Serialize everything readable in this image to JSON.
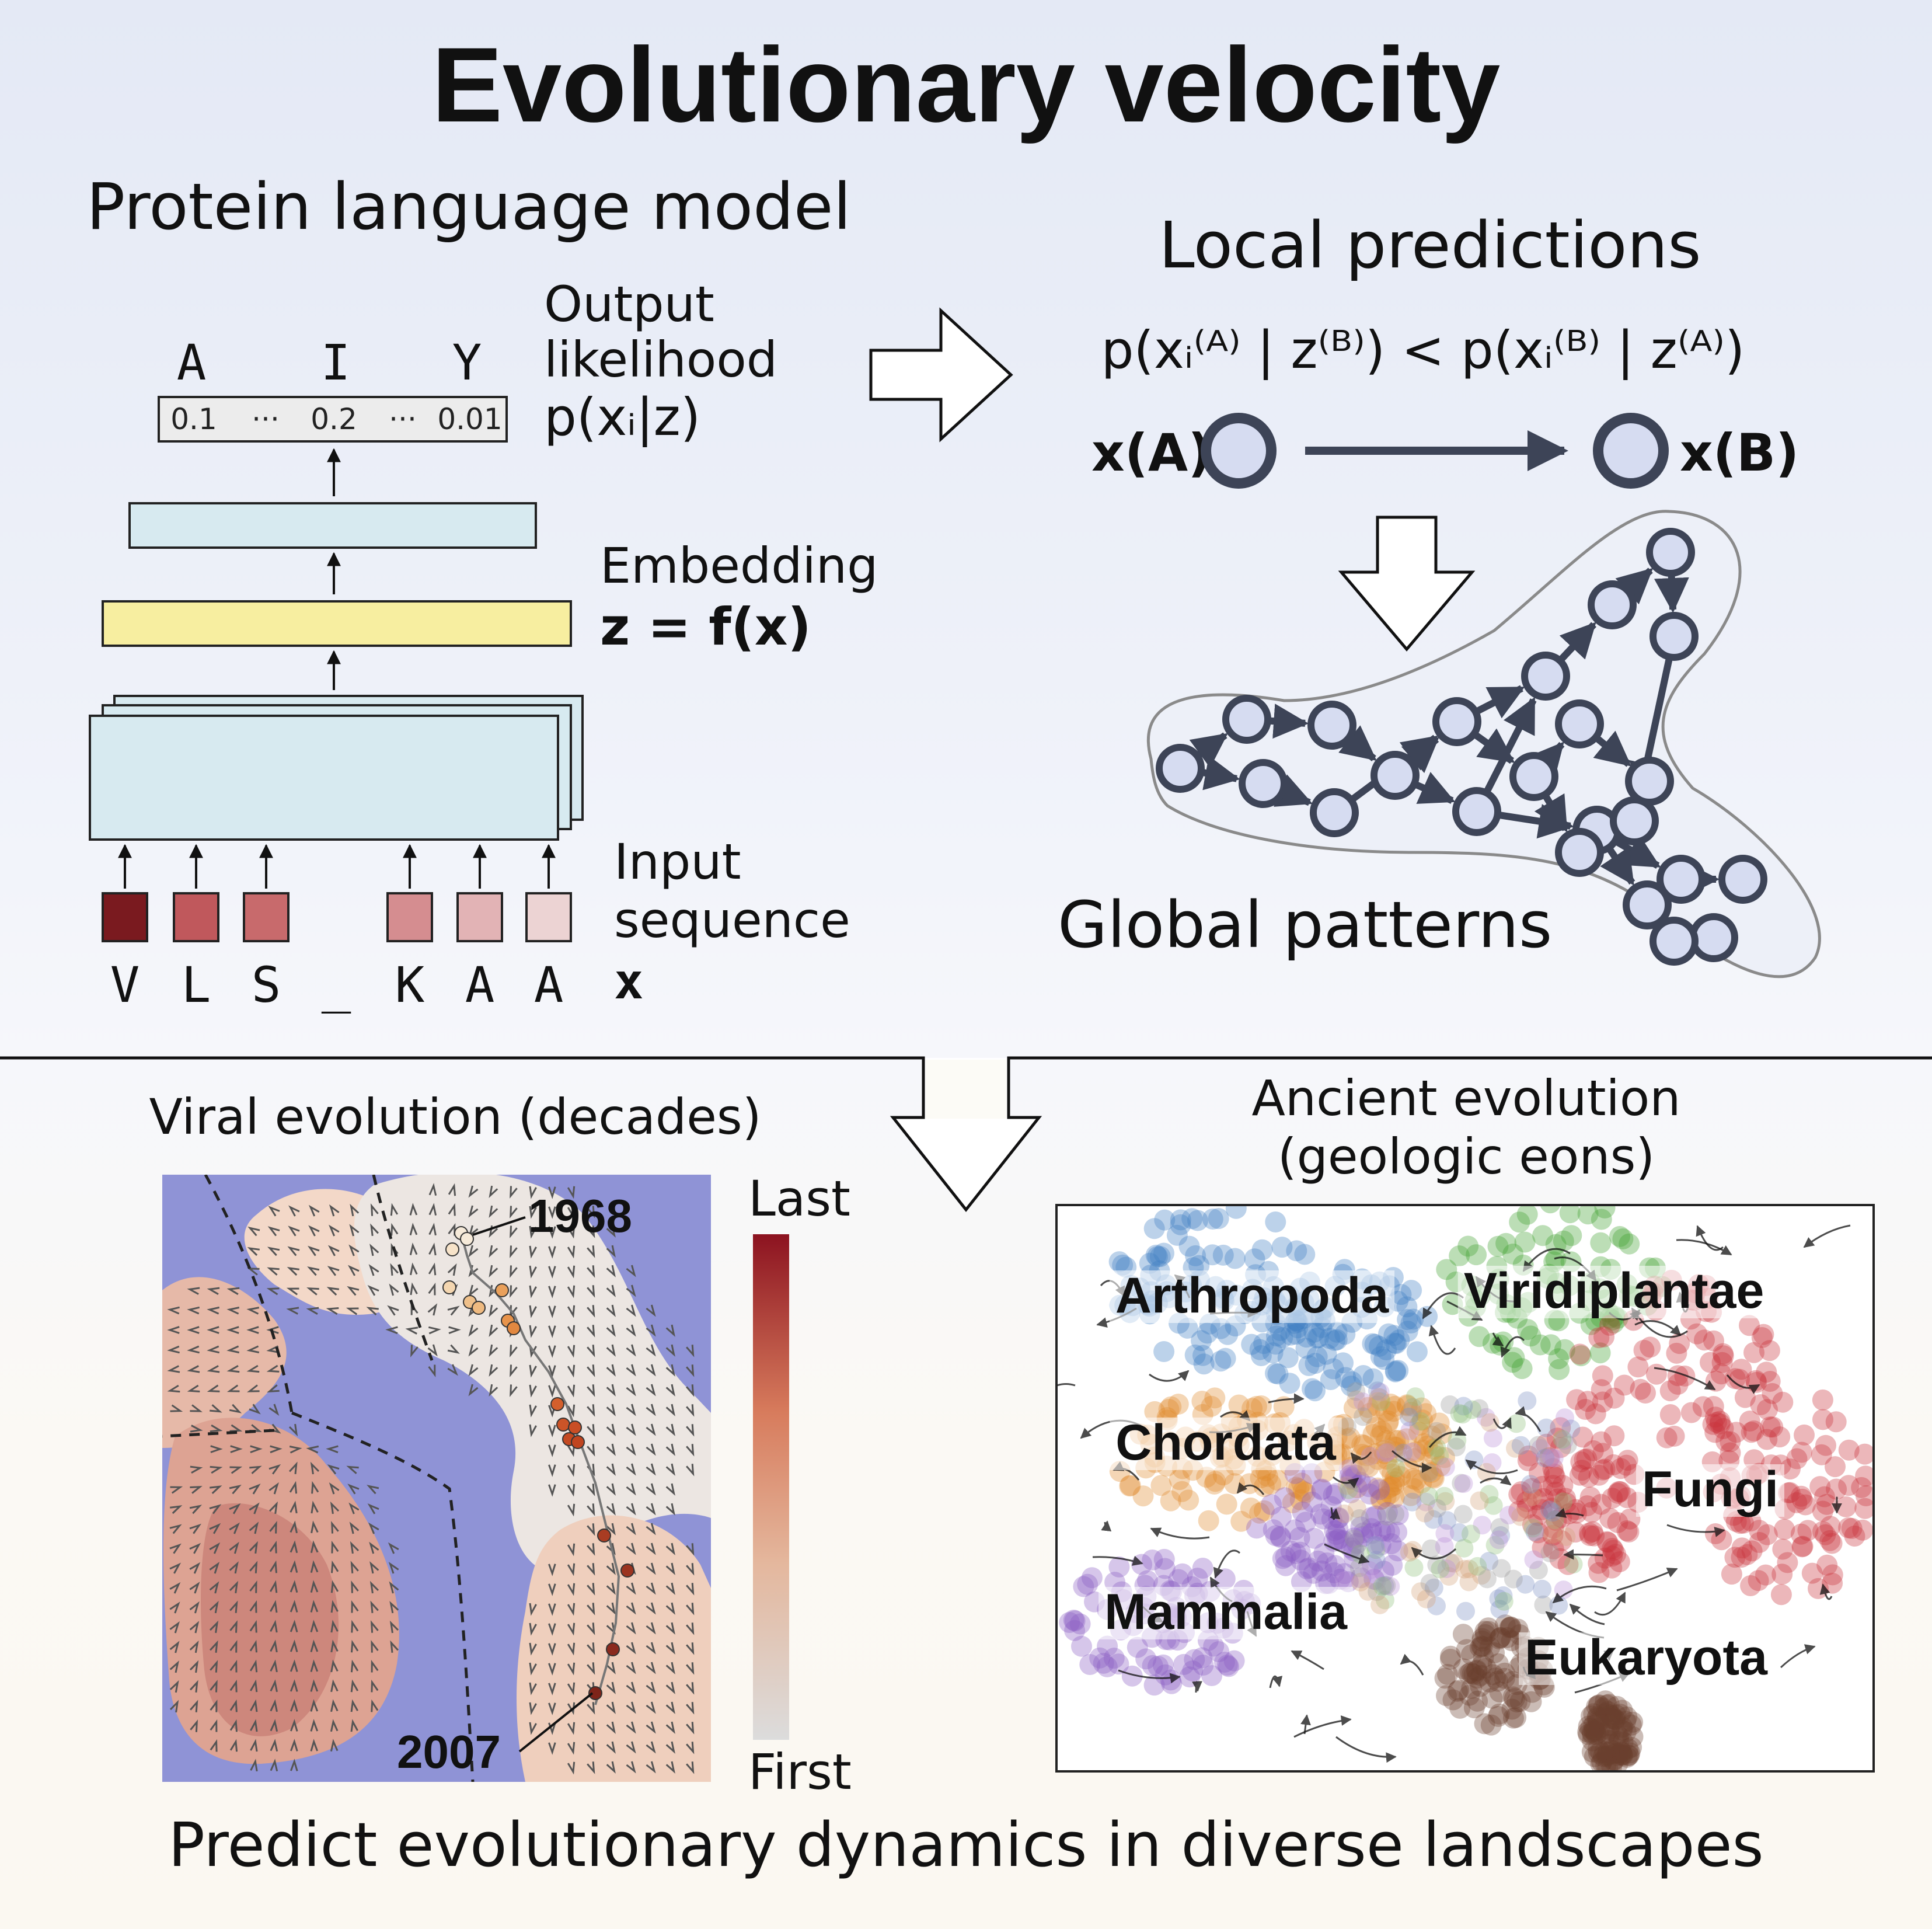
{
  "title": "Evolutionary velocity",
  "plm": {
    "heading": "Protein language model",
    "output_letters": [
      "A",
      "I",
      "Y"
    ],
    "output_values": [
      "0.1",
      "···",
      "0.2",
      "···",
      "0.01"
    ],
    "output_label_line1": "Output",
    "output_label_line2": "likelihood",
    "output_formula": "p(xᵢ|z)",
    "embedding_label": "Embedding",
    "embedding_formula": "z = f(x)",
    "input_label_line1": "Input",
    "input_label_line2": "sequence",
    "input_sequence": [
      "V",
      "L",
      "S",
      "_",
      "K",
      "A",
      "A"
    ],
    "input_colors": [
      "#7a1a1f",
      "#c0585c",
      "#c86a6c",
      "",
      "#d58d90",
      "#e2b3b5",
      "#ecd3d3"
    ],
    "input_symbol": "x"
  },
  "local": {
    "heading": "Local predictions",
    "inequality": "p(xᵢ⁽ᴬ⁾ | z⁽ᴮ⁾) < p(xᵢ⁽ᴮ⁾ | z⁽ᴬ⁾)",
    "node_a_label": "x(A)",
    "node_b_label": "x(B)",
    "global_heading": "Global patterns"
  },
  "viral": {
    "heading": "Viral evolution (decades)",
    "year_start": "1968",
    "year_end": "2007",
    "colorbar_top": "Last",
    "colorbar_bottom": "First"
  },
  "ancient": {
    "heading_line1": "Ancient evolution",
    "heading_line2": "(geologic eons)",
    "taxa": [
      {
        "name": "Arthropoda",
        "color": "#3f7fc4"
      },
      {
        "name": "Viridiplantae",
        "color": "#3ea12f"
      },
      {
        "name": "Chordata",
        "color": "#e08a2a"
      },
      {
        "name": "Fungi",
        "color": "#c8303a"
      },
      {
        "name": "Mammalia",
        "color": "#8a5cc4"
      },
      {
        "name": "Eukaryota",
        "color": "#6b3e2e"
      }
    ]
  },
  "footer": "Predict evolutionary dynamics in diverse landscapes",
  "colors": {
    "embedding_yellow": "#f7eea0",
    "layer_blue": "#d7eaf0",
    "node_fill": "#d6dcf1",
    "node_stroke": "#3d4457",
    "landscape_bg": "#8f93d6"
  }
}
